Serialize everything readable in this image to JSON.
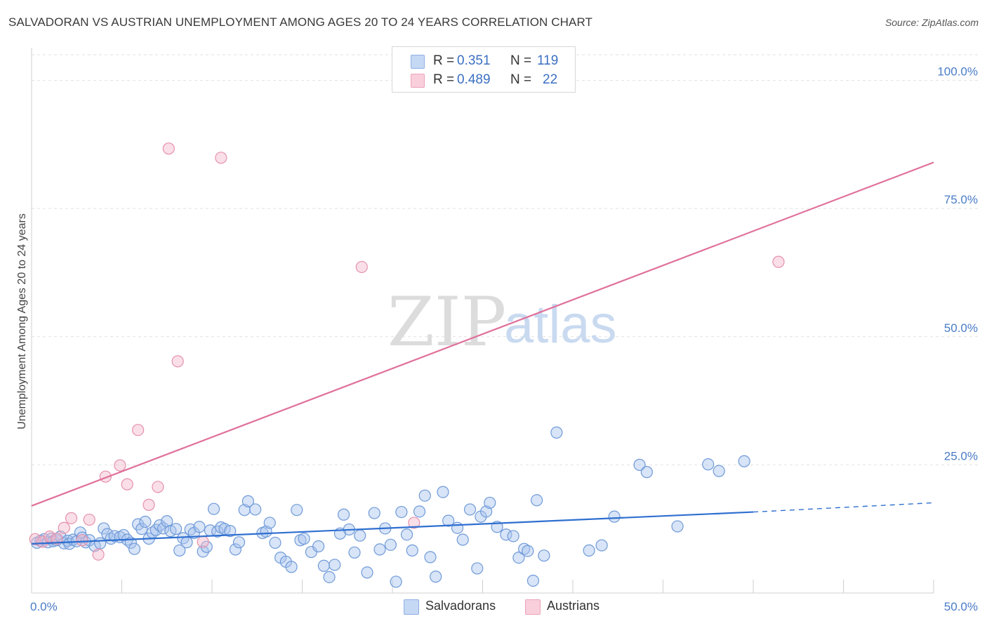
{
  "header": {
    "title": "SALVADORAN VS AUSTRIAN UNEMPLOYMENT AMONG AGES 20 TO 24 YEARS CORRELATION CHART",
    "source": "Source: ZipAtlas.com"
  },
  "watermark": {
    "zip": "ZIP",
    "atlas": "atlas"
  },
  "legend_top": {
    "rows": [
      {
        "r_label": "R =",
        "r_value": "0.351",
        "n_label": "N =",
        "n_value": "119",
        "color": "#a9c4ee"
      },
      {
        "r_label": "R =",
        "r_value": "0.489",
        "n_label": "N =",
        "n_value": "22",
        "color": "#f5b8cb"
      }
    ]
  },
  "legend_bottom": {
    "items": [
      {
        "label": "Salvadorans",
        "color": "#a9c4ee"
      },
      {
        "label": "Austrians",
        "color": "#f5b8cb"
      }
    ]
  },
  "chart_data": {
    "type": "scatter",
    "title": "SALVADORAN VS AUSTRIAN UNEMPLOYMENT AMONG AGES 20 TO 24 YEARS CORRELATION CHART",
    "xlabel": "",
    "ylabel": "Unemployment Among Ages 20 to 24 years",
    "xlim": [
      0,
      50
    ],
    "ylim": [
      0,
      105
    ],
    "x_tick_labels": [
      "0.0%",
      "50.0%"
    ],
    "y_tick_values": [
      25,
      50,
      75,
      100
    ],
    "y_tick_labels": [
      "25.0%",
      "50.0%",
      "75.0%",
      "100.0%"
    ],
    "grid": true,
    "series": [
      {
        "name": "Salvadorans",
        "color": "#a9c4ee",
        "edge": "#6f9ad8",
        "line_color": "#2f6fd0",
        "trend": {
          "x0": 0,
          "y0": 9.6,
          "x1": 40,
          "y1": 15.8,
          "dash_to_x": 50,
          "dash_to_y": 17.6
        },
        "points": [
          [
            0.3,
            9.8
          ],
          [
            0.5,
            10.2
          ],
          [
            0.7,
            10.5
          ],
          [
            0.9,
            9.9
          ],
          [
            1.1,
            10.6
          ],
          [
            1.2,
            10.1
          ],
          [
            1.4,
            10.3
          ],
          [
            1.6,
            11.0
          ],
          [
            1.8,
            9.7
          ],
          [
            2.0,
            10.2
          ],
          [
            2.1,
            9.6
          ],
          [
            2.3,
            10.4
          ],
          [
            2.5,
            10.1
          ],
          [
            2.7,
            11.8
          ],
          [
            2.8,
            10.8
          ],
          [
            3.0,
            9.9
          ],
          [
            3.2,
            10.3
          ],
          [
            3.5,
            9.2
          ],
          [
            3.8,
            9.7
          ],
          [
            4.0,
            12.6
          ],
          [
            4.2,
            11.5
          ],
          [
            4.4,
            10.6
          ],
          [
            4.6,
            11.1
          ],
          [
            4.9,
            10.9
          ],
          [
            5.1,
            11.3
          ],
          [
            5.3,
            10.4
          ],
          [
            5.5,
            9.8
          ],
          [
            5.7,
            8.6
          ],
          [
            5.9,
            13.4
          ],
          [
            6.1,
            12.5
          ],
          [
            6.3,
            13.9
          ],
          [
            6.5,
            10.6
          ],
          [
            6.7,
            11.8
          ],
          [
            6.9,
            12.3
          ],
          [
            7.1,
            13.2
          ],
          [
            7.3,
            12.6
          ],
          [
            7.5,
            14.0
          ],
          [
            7.7,
            12.1
          ],
          [
            8.0,
            12.5
          ],
          [
            8.2,
            8.3
          ],
          [
            8.4,
            10.7
          ],
          [
            8.6,
            9.9
          ],
          [
            8.8,
            12.4
          ],
          [
            9.0,
            11.7
          ],
          [
            9.3,
            12.9
          ],
          [
            9.5,
            8.1
          ],
          [
            9.7,
            9.0
          ],
          [
            9.9,
            12.2
          ],
          [
            10.1,
            16.4
          ],
          [
            10.3,
            12.0
          ],
          [
            10.5,
            12.8
          ],
          [
            10.7,
            12.5
          ],
          [
            11.0,
            12.1
          ],
          [
            11.3,
            8.5
          ],
          [
            11.5,
            9.9
          ],
          [
            11.8,
            16.2
          ],
          [
            12.0,
            17.9
          ],
          [
            12.4,
            16.3
          ],
          [
            12.8,
            11.7
          ],
          [
            13.0,
            12.0
          ],
          [
            13.2,
            13.7
          ],
          [
            13.5,
            9.8
          ],
          [
            13.8,
            6.9
          ],
          [
            14.1,
            6.1
          ],
          [
            14.4,
            5.1
          ],
          [
            14.7,
            16.2
          ],
          [
            14.9,
            10.3
          ],
          [
            15.1,
            10.6
          ],
          [
            15.5,
            8.0
          ],
          [
            15.9,
            9.1
          ],
          [
            16.2,
            5.3
          ],
          [
            16.5,
            3.1
          ],
          [
            16.8,
            5.5
          ],
          [
            17.1,
            11.6
          ],
          [
            17.3,
            15.3
          ],
          [
            17.6,
            12.4
          ],
          [
            17.9,
            7.9
          ],
          [
            18.2,
            11.2
          ],
          [
            18.6,
            4.0
          ],
          [
            19.0,
            15.6
          ],
          [
            19.3,
            8.5
          ],
          [
            19.6,
            12.6
          ],
          [
            19.9,
            9.4
          ],
          [
            20.2,
            2.2
          ],
          [
            20.5,
            15.8
          ],
          [
            20.8,
            11.4
          ],
          [
            21.1,
            8.3
          ],
          [
            21.5,
            15.9
          ],
          [
            21.8,
            19.0
          ],
          [
            22.1,
            7.0
          ],
          [
            22.4,
            3.2
          ],
          [
            22.8,
            19.7
          ],
          [
            23.1,
            14.1
          ],
          [
            23.6,
            12.7
          ],
          [
            23.9,
            10.4
          ],
          [
            24.3,
            16.3
          ],
          [
            24.7,
            4.8
          ],
          [
            24.9,
            14.9
          ],
          [
            25.2,
            15.9
          ],
          [
            25.4,
            17.6
          ],
          [
            25.8,
            12.9
          ],
          [
            26.3,
            11.4
          ],
          [
            26.7,
            11.1
          ],
          [
            27.0,
            6.9
          ],
          [
            27.3,
            8.6
          ],
          [
            27.5,
            8.2
          ],
          [
            27.8,
            2.4
          ],
          [
            28.0,
            18.1
          ],
          [
            28.4,
            7.3
          ],
          [
            29.1,
            31.3
          ],
          [
            30.9,
            8.3
          ],
          [
            31.6,
            9.3
          ],
          [
            32.3,
            14.9
          ],
          [
            33.7,
            25.0
          ],
          [
            34.1,
            23.6
          ],
          [
            35.8,
            13.0
          ],
          [
            37.5,
            25.1
          ],
          [
            38.1,
            23.8
          ],
          [
            39.5,
            25.7
          ]
        ]
      },
      {
        "name": "Austrians",
        "color": "#f5b8cb",
        "edge": "#e691ab",
        "line_color": "#e0709a",
        "trend": {
          "x0": 0,
          "y0": 17.0,
          "x1": 50,
          "y1": 84.0
        },
        "points": [
          [
            0.2,
            10.5
          ],
          [
            0.6,
            10.0
          ],
          [
            1.0,
            11.0
          ],
          [
            1.4,
            10.6
          ],
          [
            1.8,
            12.7
          ],
          [
            2.2,
            14.6
          ],
          [
            2.8,
            10.3
          ],
          [
            3.2,
            14.3
          ],
          [
            3.7,
            7.5
          ],
          [
            4.1,
            22.7
          ],
          [
            4.9,
            24.9
          ],
          [
            5.3,
            21.2
          ],
          [
            5.9,
            31.8
          ],
          [
            6.5,
            17.2
          ],
          [
            7.0,
            20.7
          ],
          [
            7.6,
            86.7
          ],
          [
            8.1,
            45.2
          ],
          [
            9.5,
            10.0
          ],
          [
            10.5,
            84.9
          ],
          [
            18.3,
            63.6
          ],
          [
            21.2,
            13.7
          ],
          [
            41.4,
            64.6
          ]
        ]
      }
    ]
  }
}
